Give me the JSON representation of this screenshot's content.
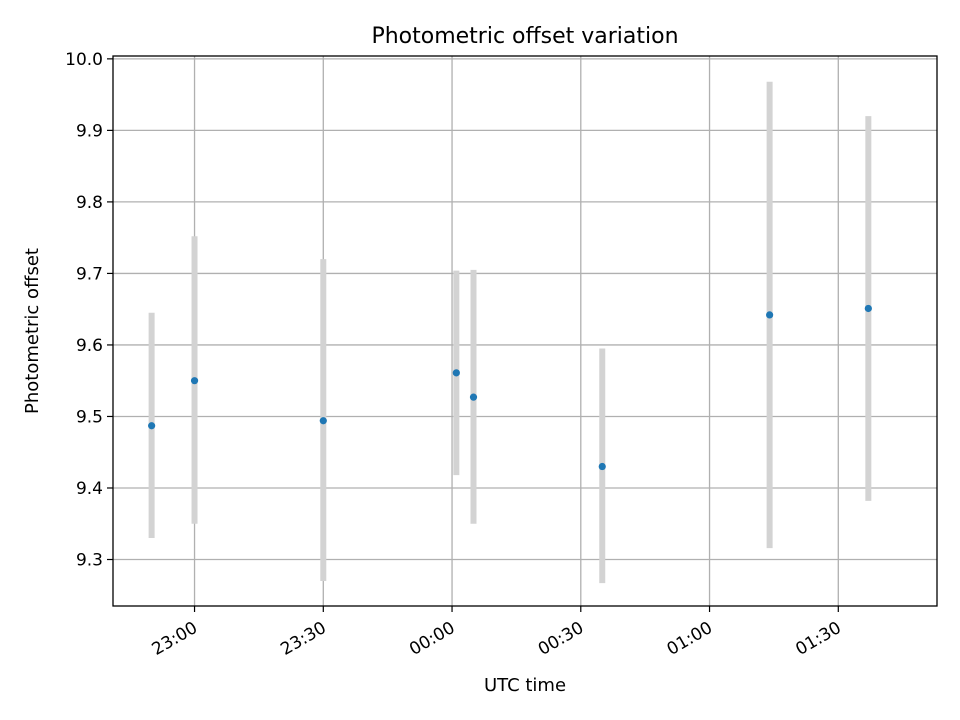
{
  "chart_data": {
    "type": "scatter",
    "title": "Photometric offset variation",
    "xlabel": "UTC time",
    "ylabel": "Photometric offset",
    "grid": true,
    "xlim": [
      "22:41",
      "01:53"
    ],
    "ylim": [
      9.235,
      10.004
    ],
    "x_ticks": [
      "23:00",
      "23:30",
      "00:00",
      "00:30",
      "01:00",
      "01:30"
    ],
    "y_ticks": [
      "9.3",
      "9.4",
      "9.5",
      "9.6",
      "9.7",
      "9.8",
      "9.9",
      "10.0"
    ],
    "points": [
      {
        "x": "22:50",
        "y": 9.487,
        "ylow": 9.33,
        "yhigh": 9.645
      },
      {
        "x": "23:00",
        "y": 9.55,
        "ylow": 9.35,
        "yhigh": 9.752
      },
      {
        "x": "23:30",
        "y": 9.494,
        "ylow": 9.27,
        "yhigh": 9.72
      },
      {
        "x": "00:01",
        "y": 9.561,
        "ylow": 9.418,
        "yhigh": 9.704
      },
      {
        "x": "00:05",
        "y": 9.527,
        "ylow": 9.35,
        "yhigh": 9.705
      },
      {
        "x": "00:35",
        "y": 9.43,
        "ylow": 9.267,
        "yhigh": 9.595
      },
      {
        "x": "01:14",
        "y": 9.642,
        "ylow": 9.316,
        "yhigh": 9.968
      },
      {
        "x": "01:37",
        "y": 9.651,
        "ylow": 9.382,
        "yhigh": 9.92
      }
    ],
    "colors": {
      "point": "#1f77b4",
      "errorbar": "#d3d3d3",
      "grid": "#b0b0b0"
    }
  }
}
